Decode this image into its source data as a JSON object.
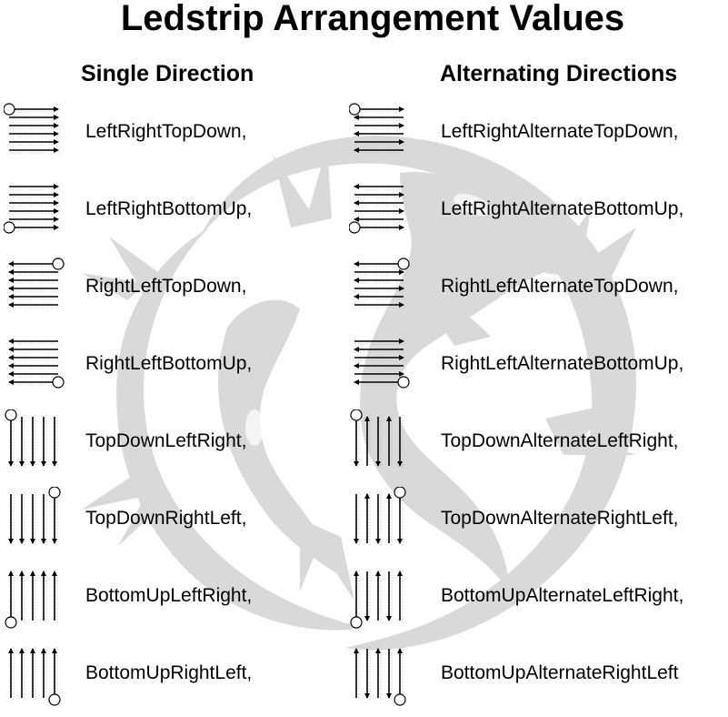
{
  "header": {
    "title": "Ledstrip Arrangement  Values",
    "single_heading": "Single Direction",
    "alternating_heading": "Alternating Directions"
  },
  "colors": {
    "text": "#000000",
    "watermark": "#d9d9d9",
    "arrow": "#000000",
    "guide": "#9a9a9a"
  },
  "watermark_icon": "lizard-watermark",
  "single": [
    {
      "label": "LeftRightTopDown,",
      "orientation": "horizontal",
      "start": "top-left",
      "alternate": false
    },
    {
      "label": "LeftRightBottomUp,",
      "orientation": "horizontal",
      "start": "bottom-left",
      "alternate": false
    },
    {
      "label": "RightLeftTopDown,",
      "orientation": "horizontal",
      "start": "top-right",
      "alternate": false
    },
    {
      "label": "RightLeftBottomUp,",
      "orientation": "horizontal",
      "start": "bottom-right",
      "alternate": false
    },
    {
      "label": "TopDownLeftRight,",
      "orientation": "vertical",
      "start": "top-left",
      "alternate": false
    },
    {
      "label": "TopDownRightLeft,",
      "orientation": "vertical",
      "start": "top-right",
      "alternate": false
    },
    {
      "label": "BottomUpLeftRight,",
      "orientation": "vertical",
      "start": "bottom-left",
      "alternate": false
    },
    {
      "label": "BottomUpRightLeft,",
      "orientation": "vertical",
      "start": "bottom-right",
      "alternate": false
    }
  ],
  "alternating": [
    {
      "label": "LeftRightAlternateTopDown,",
      "orientation": "horizontal",
      "start": "top-left",
      "alternate": true
    },
    {
      "label": "LeftRightAlternateBottomUp,",
      "orientation": "horizontal",
      "start": "bottom-left",
      "alternate": true
    },
    {
      "label": "RightLeftAlternateTopDown,",
      "orientation": "horizontal",
      "start": "top-right",
      "alternate": true
    },
    {
      "label": "RightLeftAlternateBottomUp,",
      "orientation": "horizontal",
      "start": "bottom-right",
      "alternate": true
    },
    {
      "label": "TopDownAlternateLeftRight,",
      "orientation": "vertical",
      "start": "top-left",
      "alternate": true
    },
    {
      "label": "TopDownAlternateRightLeft,",
      "orientation": "vertical",
      "start": "top-right",
      "alternate": true
    },
    {
      "label": "BottomUpAlternateLeftRight,",
      "orientation": "vertical",
      "start": "bottom-left",
      "alternate": true
    },
    {
      "label": "BottomUpAlternateRightLeft",
      "orientation": "vertical",
      "start": "bottom-right",
      "alternate": true
    }
  ]
}
